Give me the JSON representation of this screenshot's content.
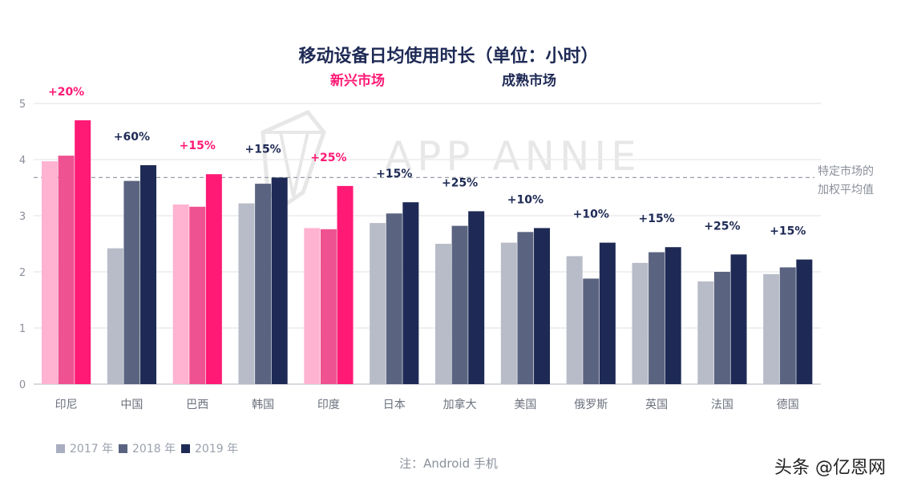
{
  "title": "移动设备日均使用时长（单位：小时）",
  "groups": {
    "emerging": "新兴市场",
    "mature": "成熟市场"
  },
  "reference_line": {
    "value": 3.68,
    "label_lines": [
      "特定市场的",
      "加权平均值"
    ]
  },
  "brand_watermark": "APP ANNIE",
  "note": "注：Android 手机",
  "source_watermark": "头条 @亿恩网",
  "colors": {
    "emerging": [
      "#ffb3d1",
      "#ef5290",
      "#ff1a75"
    ],
    "mature": [
      "#b8bcc8",
      "#5a6480",
      "#1e2a55"
    ],
    "legend": [
      "#a9aec0",
      "#5a6480",
      "#1e2a55"
    ],
    "emerging_label": "#ff1a75",
    "mature_label": "#1e2a55"
  },
  "chart_data": {
    "type": "bar",
    "title": "移动设备日均使用时长（单位：小时）",
    "ylim": [
      0,
      5
    ],
    "yticks": [
      "0",
      "1",
      "2",
      "3",
      "4",
      "5"
    ],
    "grid": true,
    "legend_position": "bottom-left",
    "categories": [
      "印尼",
      "中国",
      "巴西",
      "韩国",
      "印度",
      "日本",
      "加拿大",
      "美国",
      "俄罗斯",
      "英国",
      "法国",
      "德国"
    ],
    "market_group": [
      "emerging",
      "mature",
      "emerging",
      "mature",
      "emerging",
      "mature",
      "mature",
      "mature",
      "mature",
      "mature",
      "mature",
      "mature"
    ],
    "series": [
      {
        "name": "2017 年",
        "values": [
          3.97,
          2.42,
          3.2,
          3.22,
          2.78,
          2.87,
          2.5,
          2.52,
          2.28,
          2.16,
          1.83,
          1.96
        ]
      },
      {
        "name": "2018 年",
        "values": [
          4.07,
          3.62,
          3.16,
          3.57,
          2.76,
          3.04,
          2.82,
          2.71,
          1.88,
          2.35,
          2.0,
          2.08
        ]
      },
      {
        "name": "2019 年",
        "values": [
          4.7,
          3.9,
          3.74,
          3.68,
          3.53,
          3.24,
          3.08,
          2.78,
          2.52,
          2.44,
          2.31,
          2.22
        ]
      }
    ],
    "annotations": [
      "+20%",
      "+60%",
      "+15%",
      "+15%",
      "+25%",
      "+15%",
      "+25%",
      "+10%",
      "+10%",
      "+15%",
      "+25%",
      "+15%"
    ]
  }
}
